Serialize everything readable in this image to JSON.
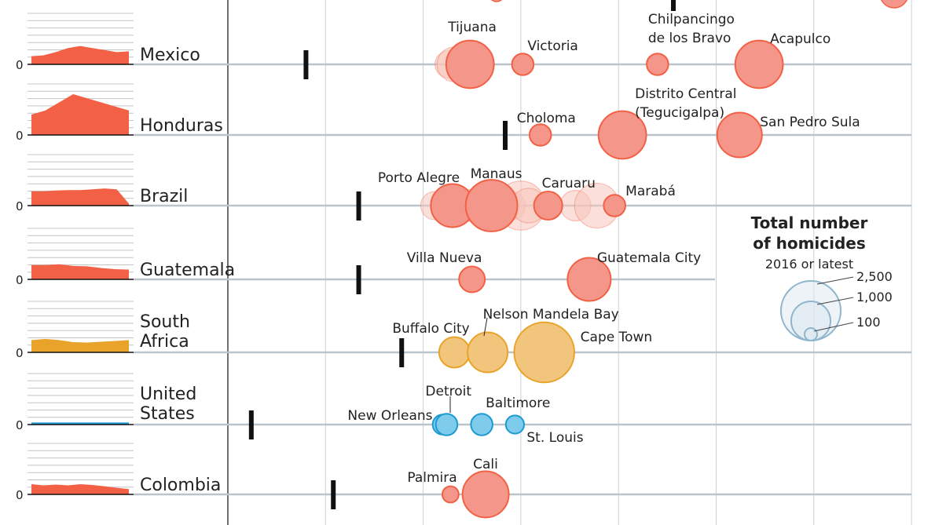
{
  "colors": {
    "red": "#f26145",
    "redFill": "#f4978a",
    "redPale": "#f8c4bb",
    "orange": "#e9a32a",
    "orangeFill": "#f2c57d",
    "blue": "#1e9bd1",
    "blueFill": "#7fcbec",
    "grid": "#c9d2d8",
    "rowline": "#b9c4cc",
    "marker": "#111111",
    "legendStroke": "#8fb6cc",
    "legendFill": "#dbe8f0"
  },
  "chart_data": {
    "type": "scatter",
    "description_units": "x = homicide rate (chart units 0-35), circle size = total homicides",
    "xlim": [
      0,
      35
    ],
    "rows": [
      {
        "country": "Mexico",
        "countryLines": [
          "Mexico"
        ],
        "zero": "0",
        "color": "red",
        "national": 4,
        "spark": [
          0.2,
          0.22,
          0.3,
          0.4,
          0.45,
          0.4,
          0.35,
          0.3,
          0.32
        ],
        "cities": [
          {
            "name": "",
            "x": 11.3,
            "total": 550,
            "pale": true
          },
          {
            "name": "",
            "x": 11.6,
            "total": 900,
            "pale": true
          },
          {
            "name": "Tijuana",
            "x": 12.4,
            "total": 1700,
            "label": [
              "Tijuana"
            ],
            "lx": -28,
            "ly": -42
          },
          {
            "name": "Victoria",
            "x": 15.1,
            "total": 350,
            "label": [
              "Victoria"
            ],
            "lx": 6,
            "ly": -18
          },
          {
            "name": "Chilpancingo de los Bravo",
            "x": 22.0,
            "total": 350,
            "label": [
              "Chilpancingo",
              "de los Bravo"
            ],
            "lx": -12,
            "ly": -52
          },
          {
            "name": "Acapulco",
            "x": 27.2,
            "total": 1700,
            "label": [
              "Acapulco"
            ],
            "lx": 14,
            "ly": -27
          }
        ]
      },
      {
        "country": "Honduras",
        "countryLines": [
          "Honduras"
        ],
        "zero": "0",
        "color": "red",
        "national": 14.2,
        "spark": [
          0.5,
          0.6,
          0.8,
          1.0,
          0.9,
          0.8,
          0.7,
          0.6
        ],
        "cities": [
          {
            "name": "Choloma",
            "x": 16.0,
            "total": 350,
            "label": [
              "Choloma"
            ],
            "lx": -30,
            "ly": -16
          },
          {
            "name": "Distrito Central (Tegucigalpa)",
            "x": 20.2,
            "total": 1700,
            "label": [
              "Distrito Central",
              "(Tegucigalpa)"
            ],
            "lx": 16,
            "ly": -47
          },
          {
            "name": "San Pedro Sula",
            "x": 26.2,
            "total": 1500,
            "label": [
              "San Pedro Sula"
            ],
            "lx": 26,
            "ly": -11
          }
        ]
      },
      {
        "country": "Brazil",
        "countryLines": [
          "Brazil"
        ],
        "zero": "0",
        "color": "red",
        "national": 6.7,
        "spark": [
          0.35,
          0.35,
          0.37,
          0.38,
          0.38,
          0.4,
          0.42,
          0.4,
          0.05
        ],
        "cities": [
          {
            "name": "",
            "x": 10.6,
            "total": 600,
            "pale": true
          },
          {
            "name": "",
            "x": 11.4,
            "total": 900,
            "pale": true
          },
          {
            "name": "Porto Alegre",
            "x": 11.5,
            "total": 1400,
            "label": [
              "Porto Alegre"
            ],
            "lx": -95,
            "ly": -30
          },
          {
            "name": "",
            "x": 12.5,
            "total": 800,
            "pale": true
          },
          {
            "name": "",
            "x": 13.4,
            "total": 1100,
            "pale": true
          },
          {
            "name": "Manaus",
            "x": 13.5,
            "total": 2000,
            "label": [
              "Manaus"
            ],
            "lx": -27,
            "ly": -35
          },
          {
            "name": "",
            "x": 14.0,
            "total": 1000,
            "pale": true
          },
          {
            "name": "",
            "x": 14.5,
            "total": 600,
            "pale": true
          },
          {
            "name": "",
            "x": 15.0,
            "total": 1800,
            "pale": true
          },
          {
            "name": "",
            "x": 15.4,
            "total": 900,
            "pale": true
          },
          {
            "name": "Caruaru",
            "x": 16.4,
            "total": 600,
            "label": [
              "Caruaru"
            ],
            "lx": -8,
            "ly": -23
          },
          {
            "name": "",
            "x": 17.8,
            "total": 700,
            "pale": true
          },
          {
            "name": "",
            "x": 18.9,
            "total": 1500,
            "pale": true
          },
          {
            "name": "Marabá",
            "x": 19.8,
            "total": 350,
            "label": [
              "Marabá"
            ],
            "lx": 14,
            "ly": -13
          }
        ]
      },
      {
        "country": "Guatemala",
        "countryLines": [
          "Guatemala"
        ],
        "zero": "0",
        "color": "red",
        "national": 6.7,
        "spark": [
          0.35,
          0.35,
          0.37,
          0.33,
          0.32,
          0.28,
          0.25,
          0.24
        ],
        "cities": [
          {
            "name": "Villa Nueva",
            "x": 12.5,
            "total": 500,
            "label": [
              "Villa Nueva"
            ],
            "lx": -83,
            "ly": -22
          },
          {
            "name": "Guatemala City",
            "x": 18.5,
            "total": 1400,
            "label": [
              "Guatemala City"
            ],
            "lx": 10,
            "ly": -22
          }
        ]
      },
      {
        "country": "South Africa",
        "countryLines": [
          "South",
          "Africa"
        ],
        "zero": "0",
        "color": "orange",
        "national": 8.9,
        "spark": [
          0.3,
          0.33,
          0.3,
          0.25,
          0.24,
          0.26,
          0.28,
          0.3
        ],
        "cities": [
          {
            "name": "Buffalo City",
            "x": 11.6,
            "total": 700,
            "label": [
              "Buffalo City"
            ],
            "lx": -79,
            "ly": -25
          },
          {
            "name": "Nelson Mandela Bay",
            "x": 13.3,
            "total": 1200,
            "label": [
              "Nelson Mandela Bay"
            ],
            "lx": -6,
            "ly": -43
          },
          {
            "name": "Cape Town",
            "x": 16.2,
            "total": 2700,
            "label": [
              "Cape Town"
            ],
            "lx": 46,
            "ly": -14
          }
        ]
      },
      {
        "country": "United States",
        "countryLines": [
          "United",
          "States"
        ],
        "zero": "0",
        "color": "blue",
        "national": 1.2,
        "spark": [
          0.05,
          0.05,
          0.05,
          0.05,
          0.05,
          0.05,
          0.05,
          0.05
        ],
        "cities": [
          {
            "name": "New Orleans",
            "x": 11.0,
            "total": 300,
            "label": [
              "New Orleans"
            ],
            "lx": -121,
            "ly": -6
          },
          {
            "name": "Detroit",
            "x": 11.2,
            "total": 350,
            "label": [
              "Detroit"
            ],
            "lx": -27,
            "ly": -37
          },
          {
            "name": "Baltimore",
            "x": 13.0,
            "total": 350,
            "label": [
              "Baltimore"
            ],
            "lx": 5,
            "ly": -22
          },
          {
            "name": "St. Louis",
            "x": 14.7,
            "total": 250,
            "label": [
              "St. Louis"
            ],
            "lx": 15,
            "ly": 22
          }
        ]
      },
      {
        "country": "Colombia",
        "countryLines": [
          "Colombia"
        ],
        "zero": "0",
        "color": "red",
        "national": 5.4,
        "spark": [
          0.25,
          0.22,
          0.24,
          0.22,
          0.25,
          0.23,
          0.2,
          0.16,
          0.13
        ],
        "cities": [
          {
            "name": "Palmira",
            "x": 11.4,
            "total": 200,
            "label": [
              "Palmira"
            ],
            "lx": -55,
            "ly": -16
          },
          {
            "name": "Cali",
            "x": 13.2,
            "total": 1600,
            "label": [
              "Cali"
            ],
            "lx": -16,
            "ly": -33
          }
        ]
      }
    ],
    "legend": {
      "title": [
        "Total number",
        "of homicides"
      ],
      "subtitle": "2016 or latest",
      "sizes": [
        2500,
        1000,
        100
      ],
      "labels": [
        "2,500",
        "1,000",
        "100"
      ]
    }
  }
}
